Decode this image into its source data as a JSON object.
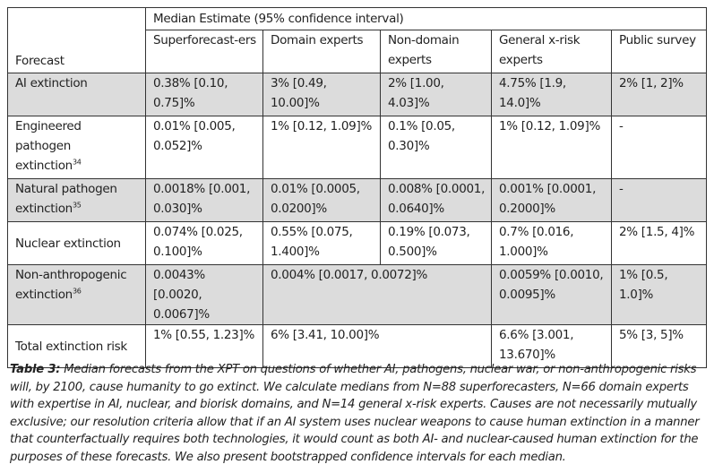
{
  "table": {
    "group_header": "Median Estimate (95% confidence interval)",
    "columns": {
      "forecast": "Forecast",
      "superforecasters": "Superforecast-ers",
      "domain_experts": "Domain experts",
      "non_domain_experts": "Non-domain experts",
      "general_xrisk_experts": "General x-risk experts",
      "public_survey": "Public survey"
    },
    "rows": [
      {
        "label": "AI extinction",
        "footnote": "",
        "superforecasters": "0.38% [0.10, 0.75]%",
        "domain_experts": "3% [0.49, 10.00]%",
        "non_domain_experts": "2% [1.00, 4.03]%",
        "general_xrisk_experts": "4.75% [1.9, 14.0]%",
        "public_survey": "2% [1, 2]%"
      },
      {
        "label": "Engineered pathogen extinction",
        "footnote": "34",
        "superforecasters": "0.01% [0.005, 0.052]%",
        "domain_experts": "1% [0.12, 1.09]%",
        "non_domain_experts": "0.1% [0.05, 0.30]%",
        "general_xrisk_experts": "1% [0.12, 1.09]%",
        "public_survey": "-"
      },
      {
        "label": "Natural pathogen extinction",
        "footnote": "35",
        "superforecasters": "0.0018% [0.001, 0.030]%",
        "domain_experts": "0.01% [0.0005, 0.0200]%",
        "non_domain_experts": "0.008% [0.0001, 0.0640]%",
        "general_xrisk_experts": "0.001% [0.0001, 0.2000]%",
        "public_survey": "-"
      },
      {
        "label": "Nuclear extinction",
        "footnote": "",
        "superforecasters": "0.074% [0.025, 0.100]%",
        "domain_experts": "0.55% [0.075, 1.400]%",
        "non_domain_experts": "0.19% [0.073, 0.500]%",
        "general_xrisk_experts": "0.7% [0.016, 1.000]%",
        "public_survey": "2% [1.5, 4]%"
      },
      {
        "label": "Non-anthropogenic extinction",
        "footnote": "36",
        "superforecasters": "0.0043% [0.0020, 0.0067]%",
        "domain_experts_merged": "0.004% [0.0017, 0.0072]%",
        "general_xrisk_experts": "0.0059% [0.0010, 0.0095]%",
        "public_survey": "1% [0.5, 1.0]%"
      },
      {
        "label": "Total extinction risk",
        "footnote": "",
        "superforecasters": "1% [0.55, 1.23]%",
        "domain_experts_merged": "6% [3.41, 10.00]%",
        "general_xrisk_experts": "6.6% [3.001, 13.670]%",
        "public_survey": "5% [3, 5]%"
      }
    ]
  },
  "caption": {
    "label": "Table 3:",
    "text": "Median forecasts from the XPT on questions of whether AI, pathogens, nuclear war, or non-anthropogenic risks will, by 2100, cause humanity to go extinct. We calculate medians from N=88 superforecasters, N=66 domain experts with expertise in AI, nuclear, and biorisk domains, and N=14 general x-risk experts. Causes are not necessarily mutually exclusive; our resolution criteria allow that if an AI system uses nuclear weapons to cause human extinction in a manner that counterfactually requires both technologies, it would count as both AI- and nuclear-caused human extinction for the purposes of these forecasts. We also present bootstrapped confidence intervals for each median."
  },
  "colors": {
    "shaded_row": "#dcdcdc",
    "border": "#333333",
    "text": "#222222"
  }
}
